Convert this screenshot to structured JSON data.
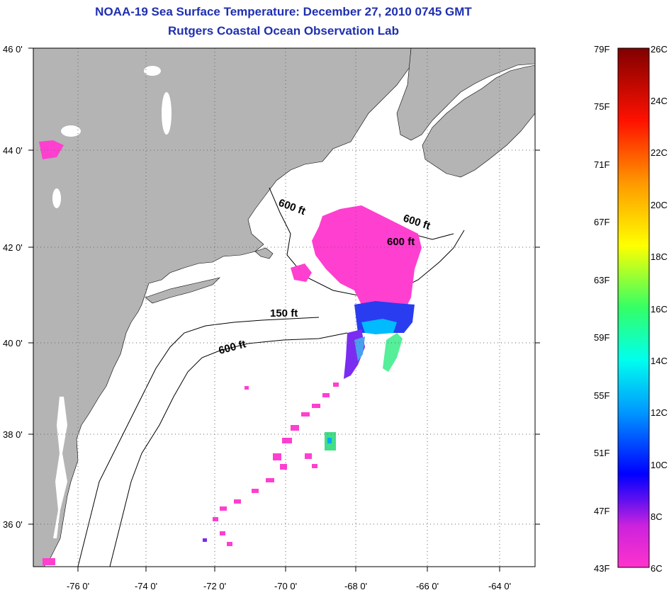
{
  "title": "NOAA-19 Sea Surface Temperature:  December 27, 2010 0745 GMT",
  "subtitle": "Rutgers Coastal Ocean Observation Lab",
  "map": {
    "lat_labels": [
      "46 0'",
      "44 0'",
      "42 0'",
      "40 0'",
      "38 0'",
      "36 0'"
    ],
    "lon_labels": [
      "-76 0'",
      "-74 0'",
      "-72 0'",
      "-70 0'",
      "-68 0'",
      "-66 0'",
      "-64 0'"
    ],
    "depth_labels": [
      "600 ft",
      "600 ft",
      "600 ft",
      "150 ft",
      "600 ft"
    ],
    "colors": {
      "land": "#b4b4b4",
      "ocean": "#ffffff",
      "sst_primary": "#ff3fd0"
    }
  },
  "colorbar": {
    "f_labels": [
      "79F",
      "75F",
      "71F",
      "67F",
      "63F",
      "59F",
      "55F",
      "51F",
      "47F",
      "43F"
    ],
    "c_labels": [
      "26C",
      "24C",
      "22C",
      "20C",
      "18C",
      "16C",
      "14C",
      "12C",
      "10C",
      "8C",
      "6C"
    ],
    "colors": [
      "#ff33cc",
      "#7f00ff",
      "#0000ff",
      "#00aaff",
      "#00ffee",
      "#33ff66",
      "#ffff00",
      "#ff8800",
      "#ff0000",
      "#800000"
    ]
  }
}
